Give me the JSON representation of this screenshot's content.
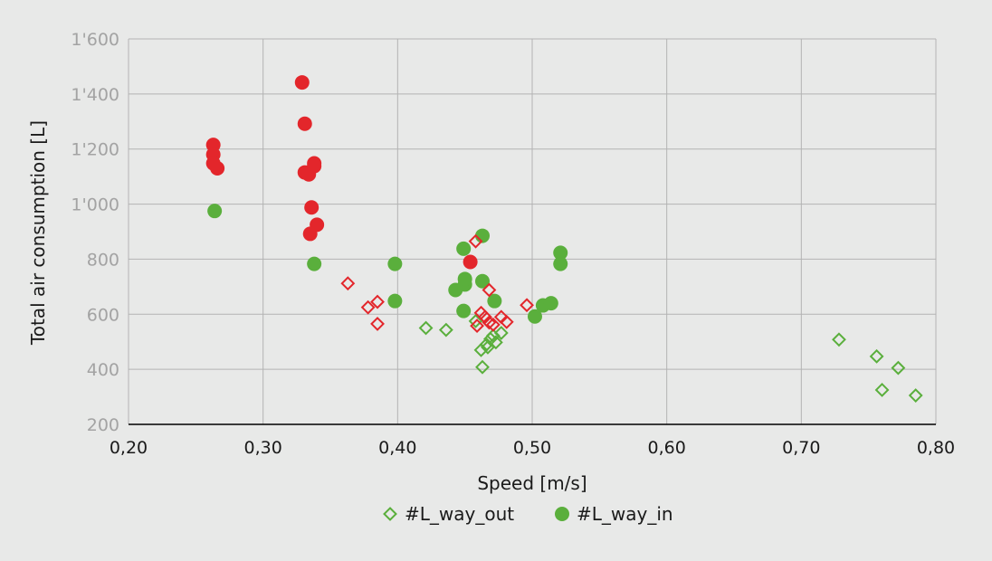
{
  "chart_data": {
    "type": "scatter",
    "title": "",
    "xlabel": "Speed [m/s]",
    "ylabel": "Total air consumption [L]",
    "xlim": [
      0.2,
      0.8
    ],
    "ylim": [
      200,
      1600
    ],
    "xticks": [
      0.2,
      0.3,
      0.4,
      0.5,
      0.6,
      0.7,
      0.8
    ],
    "xtick_labels": [
      "0,20",
      "0,30",
      "0,40",
      "0,50",
      "0,60",
      "0,70",
      "0,80"
    ],
    "yticks": [
      200,
      400,
      600,
      800,
      1000,
      1200,
      1400,
      1600
    ],
    "ytick_labels": [
      "200",
      "400",
      "600",
      "800",
      "1'000",
      "1'200",
      "1'400",
      "1'600"
    ],
    "grid": true,
    "legend_position": "bottom-center",
    "colors": {
      "green": "#5aaf3c",
      "red": "#e3262b",
      "axis_text": "#a3a3a3",
      "grid": "#b3b3b3"
    },
    "series": [
      {
        "name": "#L_way_out",
        "marker": "diamond-open",
        "color": "#5aaf3c",
        "in_legend": true,
        "points": [
          [
            0.421,
            550
          ],
          [
            0.436,
            543
          ],
          [
            0.458,
            575
          ],
          [
            0.462,
            470
          ],
          [
            0.466,
            490
          ],
          [
            0.467,
            480
          ],
          [
            0.469,
            510
          ],
          [
            0.471,
            522
          ],
          [
            0.473,
            498
          ],
          [
            0.477,
            532
          ],
          [
            0.463,
            408
          ],
          [
            0.728,
            508
          ],
          [
            0.756,
            447
          ],
          [
            0.76,
            325
          ],
          [
            0.772,
            405
          ],
          [
            0.785,
            305
          ]
        ]
      },
      {
        "name": "#L_way_in",
        "marker": "circle-filled",
        "color": "#5aaf3c",
        "in_legend": true,
        "points": [
          [
            0.264,
            975
          ],
          [
            0.338,
            783
          ],
          [
            0.398,
            783
          ],
          [
            0.398,
            648
          ],
          [
            0.449,
            838
          ],
          [
            0.443,
            688
          ],
          [
            0.45,
            708
          ],
          [
            0.45,
            728
          ],
          [
            0.449,
            612
          ],
          [
            0.463,
            885
          ],
          [
            0.463,
            720
          ],
          [
            0.472,
            648
          ],
          [
            0.502,
            592
          ],
          [
            0.508,
            632
          ],
          [
            0.514,
            640
          ],
          [
            0.521,
            823
          ],
          [
            0.521,
            783
          ]
        ]
      },
      {
        "marker": "diamond-open",
        "color": "#e3262b",
        "in_legend": false,
        "points": [
          [
            0.363,
            712
          ],
          [
            0.378,
            625
          ],
          [
            0.385,
            645
          ],
          [
            0.385,
            565
          ],
          [
            0.458,
            865
          ],
          [
            0.459,
            558
          ],
          [
            0.462,
            605
          ],
          [
            0.465,
            590
          ],
          [
            0.468,
            570
          ],
          [
            0.468,
            688
          ],
          [
            0.471,
            562
          ],
          [
            0.477,
            590
          ],
          [
            0.481,
            572
          ],
          [
            0.496,
            633
          ]
        ]
      },
      {
        "marker": "circle-filled",
        "color": "#e3262b",
        "in_legend": false,
        "points": [
          [
            0.263,
            1215
          ],
          [
            0.263,
            1180
          ],
          [
            0.263,
            1148
          ],
          [
            0.266,
            1130
          ],
          [
            0.329,
            1442
          ],
          [
            0.331,
            1292
          ],
          [
            0.331,
            1115
          ],
          [
            0.334,
            1108
          ],
          [
            0.338,
            1148
          ],
          [
            0.338,
            1138
          ],
          [
            0.336,
            988
          ],
          [
            0.34,
            925
          ],
          [
            0.335,
            892
          ],
          [
            0.454,
            790
          ]
        ]
      }
    ]
  }
}
